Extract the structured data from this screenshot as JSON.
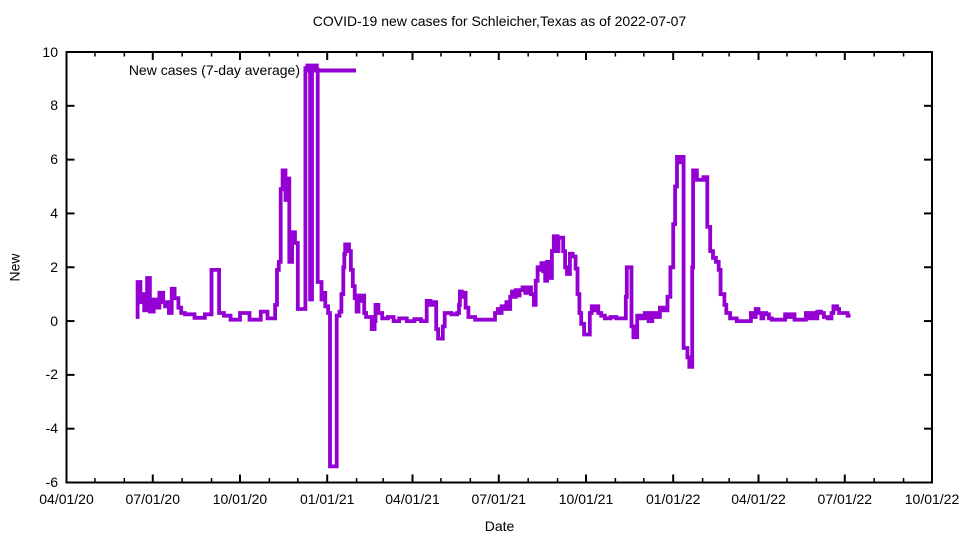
{
  "window": {
    "background": "#ffffff"
  },
  "chart_data": {
    "type": "line",
    "style": "steps",
    "title": "COVID-19 new cases for Schleicher,Texas as of 2022-07-07",
    "xlabel": "Date",
    "ylabel": "New",
    "grid": false,
    "x_range": [
      "2020-04-01",
      "2022-10-01"
    ],
    "ylim": [
      -6,
      10
    ],
    "y_ticks": [
      -6,
      -4,
      -2,
      0,
      2,
      4,
      6,
      8,
      10
    ],
    "x_ticks": [
      {
        "date": "2020-04-01",
        "label": "04/01/20"
      },
      {
        "date": "2020-07-01",
        "label": "07/01/20"
      },
      {
        "date": "2020-10-01",
        "label": "10/01/20"
      },
      {
        "date": "2021-01-01",
        "label": "01/01/21"
      },
      {
        "date": "2021-04-01",
        "label": "04/01/21"
      },
      {
        "date": "2021-07-01",
        "label": "07/01/21"
      },
      {
        "date": "2021-10-01",
        "label": "10/01/21"
      },
      {
        "date": "2022-01-01",
        "label": "01/01/22"
      },
      {
        "date": "2022-04-01",
        "label": "04/01/22"
      },
      {
        "date": "2022-07-01",
        "label": "07/01/22"
      },
      {
        "date": "2022-10-01",
        "label": "10/01/22"
      }
    ],
    "x_minor_tick": "monthly",
    "legend": {
      "label": "New cases (7-day average)",
      "position": "top-left-inside"
    },
    "colors": {
      "line": "#9400d3",
      "axis": "#000000",
      "text": "#000000"
    },
    "series": [
      {
        "name": "New cases (7-day average)",
        "points": [
          [
            "2020-06-13",
            0.15
          ],
          [
            "2020-06-15",
            1.45
          ],
          [
            "2020-06-18",
            0.7
          ],
          [
            "2020-06-20",
            1.0
          ],
          [
            "2020-06-22",
            0.4
          ],
          [
            "2020-06-25",
            1.6
          ],
          [
            "2020-06-28",
            0.35
          ],
          [
            "2020-07-02",
            0.8
          ],
          [
            "2020-07-05",
            0.5
          ],
          [
            "2020-07-08",
            1.05
          ],
          [
            "2020-07-12",
            0.7
          ],
          [
            "2020-07-14",
            0.55
          ],
          [
            "2020-07-16",
            0.7
          ],
          [
            "2020-07-18",
            0.3
          ],
          [
            "2020-07-21",
            1.2
          ],
          [
            "2020-07-24",
            0.85
          ],
          [
            "2020-07-28",
            0.5
          ],
          [
            "2020-07-31",
            0.3
          ],
          [
            "2020-08-04",
            0.25
          ],
          [
            "2020-08-14",
            0.12
          ],
          [
            "2020-08-25",
            0.25
          ],
          [
            "2020-09-01",
            1.9
          ],
          [
            "2020-09-09",
            0.3
          ],
          [
            "2020-09-14",
            0.2
          ],
          [
            "2020-09-21",
            0.05
          ],
          [
            "2020-10-01",
            0.3
          ],
          [
            "2020-10-11",
            0.05
          ],
          [
            "2020-10-23",
            0.35
          ],
          [
            "2020-10-30",
            0.1
          ],
          [
            "2020-11-07",
            0.6
          ],
          [
            "2020-11-09",
            1.9
          ],
          [
            "2020-11-11",
            2.2
          ],
          [
            "2020-11-13",
            4.9
          ],
          [
            "2020-11-15",
            5.6
          ],
          [
            "2020-11-18",
            4.5
          ],
          [
            "2020-11-19",
            5.3
          ],
          [
            "2020-11-22",
            2.2
          ],
          [
            "2020-11-25",
            3.3
          ],
          [
            "2020-11-28",
            2.9
          ],
          [
            "2020-12-01",
            0.45
          ],
          [
            "2020-12-09",
            9.4
          ],
          [
            "2020-12-11",
            9.5
          ],
          [
            "2020-12-14",
            0.8
          ],
          [
            "2020-12-16",
            9.4
          ],
          [
            "2020-12-18",
            9.5
          ],
          [
            "2020-12-21",
            9.35
          ],
          [
            "2020-12-22",
            1.45
          ],
          [
            "2020-12-26",
            0.8
          ],
          [
            "2020-12-28",
            1.05
          ],
          [
            "2020-12-30",
            0.55
          ],
          [
            "2021-01-02",
            0.3
          ],
          [
            "2021-01-04",
            -5.4
          ],
          [
            "2021-01-10",
            -5.4
          ],
          [
            "2021-01-11",
            0.2
          ],
          [
            "2021-01-14",
            0.35
          ],
          [
            "2021-01-16",
            1.0
          ],
          [
            "2021-01-18",
            2.0
          ],
          [
            "2021-01-19",
            2.5
          ],
          [
            "2021-01-20",
            2.85
          ],
          [
            "2021-01-24",
            2.6
          ],
          [
            "2021-01-26",
            1.9
          ],
          [
            "2021-01-28",
            1.3
          ],
          [
            "2021-01-30",
            0.85
          ],
          [
            "2021-02-01",
            0.35
          ],
          [
            "2021-02-03",
            0.95
          ],
          [
            "2021-02-05",
            0.75
          ],
          [
            "2021-02-07",
            0.95
          ],
          [
            "2021-02-09",
            0.3
          ],
          [
            "2021-02-11",
            0.15
          ],
          [
            "2021-02-17",
            -0.3
          ],
          [
            "2021-02-20",
            0.0
          ],
          [
            "2021-02-21",
            0.6
          ],
          [
            "2021-02-24",
            0.3
          ],
          [
            "2021-02-28",
            0.1
          ],
          [
            "2021-03-06",
            0.15
          ],
          [
            "2021-03-12",
            0.0
          ],
          [
            "2021-03-18",
            0.1
          ],
          [
            "2021-03-26",
            0.0
          ],
          [
            "2021-04-03",
            0.07
          ],
          [
            "2021-04-10",
            0.0
          ],
          [
            "2021-04-16",
            0.75
          ],
          [
            "2021-04-20",
            0.6
          ],
          [
            "2021-04-23",
            0.7
          ],
          [
            "2021-04-26",
            -0.3
          ],
          [
            "2021-04-28",
            -0.65
          ],
          [
            "2021-05-03",
            -0.2
          ],
          [
            "2021-05-05",
            0.3
          ],
          [
            "2021-05-12",
            0.25
          ],
          [
            "2021-05-18",
            0.3
          ],
          [
            "2021-05-20",
            0.6
          ],
          [
            "2021-05-21",
            1.1
          ],
          [
            "2021-05-23",
            0.9
          ],
          [
            "2021-05-25",
            1.05
          ],
          [
            "2021-05-27",
            0.5
          ],
          [
            "2021-05-30",
            0.15
          ],
          [
            "2021-06-06",
            0.05
          ],
          [
            "2021-06-27",
            0.3
          ],
          [
            "2021-06-30",
            0.45
          ],
          [
            "2021-07-02",
            0.3
          ],
          [
            "2021-07-04",
            0.55
          ],
          [
            "2021-07-06",
            0.45
          ],
          [
            "2021-07-09",
            0.7
          ],
          [
            "2021-07-11",
            0.45
          ],
          [
            "2021-07-13",
            0.9
          ],
          [
            "2021-07-15",
            1.1
          ],
          [
            "2021-07-17",
            0.9
          ],
          [
            "2021-07-19",
            1.15
          ],
          [
            "2021-07-21",
            0.95
          ],
          [
            "2021-07-23",
            1.15
          ],
          [
            "2021-07-26",
            1.25
          ],
          [
            "2021-07-29",
            1.05
          ],
          [
            "2021-08-01",
            1.25
          ],
          [
            "2021-08-04",
            1.0
          ],
          [
            "2021-08-07",
            0.6
          ],
          [
            "2021-08-09",
            1.5
          ],
          [
            "2021-08-11",
            2.0
          ],
          [
            "2021-08-13",
            1.9
          ],
          [
            "2021-08-15",
            2.15
          ],
          [
            "2021-08-17",
            1.85
          ],
          [
            "2021-08-19",
            1.5
          ],
          [
            "2021-08-21",
            2.2
          ],
          [
            "2021-08-24",
            1.6
          ],
          [
            "2021-08-26",
            2.6
          ],
          [
            "2021-08-28",
            3.15
          ],
          [
            "2021-09-01",
            2.6
          ],
          [
            "2021-09-02",
            3.1
          ],
          [
            "2021-09-07",
            2.6
          ],
          [
            "2021-09-09",
            2.0
          ],
          [
            "2021-09-11",
            1.75
          ],
          [
            "2021-09-14",
            2.5
          ],
          [
            "2021-09-17",
            2.4
          ],
          [
            "2021-09-20",
            1.95
          ],
          [
            "2021-09-22",
            1.0
          ],
          [
            "2021-09-24",
            0.3
          ],
          [
            "2021-09-26",
            -0.1
          ],
          [
            "2021-09-29",
            -0.5
          ],
          [
            "2021-10-05",
            0.3
          ],
          [
            "2021-10-07",
            0.55
          ],
          [
            "2021-10-09",
            0.4
          ],
          [
            "2021-10-11",
            0.55
          ],
          [
            "2021-10-14",
            0.3
          ],
          [
            "2021-10-17",
            0.2
          ],
          [
            "2021-10-21",
            0.1
          ],
          [
            "2021-10-27",
            0.15
          ],
          [
            "2021-11-02",
            0.1
          ],
          [
            "2021-11-12",
            0.9
          ],
          [
            "2021-11-13",
            2.0
          ],
          [
            "2021-11-18",
            -0.2
          ],
          [
            "2021-11-20",
            -0.6
          ],
          [
            "2021-11-24",
            0.2
          ],
          [
            "2021-11-28",
            0.1
          ],
          [
            "2021-12-02",
            0.3
          ],
          [
            "2021-12-06",
            0.0
          ],
          [
            "2021-12-10",
            0.3
          ],
          [
            "2021-12-14",
            0.15
          ],
          [
            "2021-12-18",
            0.5
          ],
          [
            "2021-12-22",
            0.4
          ],
          [
            "2021-12-26",
            0.9
          ],
          [
            "2021-12-29",
            2.0
          ],
          [
            "2022-01-01",
            3.6
          ],
          [
            "2022-01-03",
            5.0
          ],
          [
            "2022-01-05",
            6.1
          ],
          [
            "2022-01-08",
            5.9
          ],
          [
            "2022-01-09",
            6.1
          ],
          [
            "2022-01-12",
            -1.0
          ],
          [
            "2022-01-16",
            -1.35
          ],
          [
            "2022-01-18",
            -1.7
          ],
          [
            "2022-01-21",
            2.0
          ],
          [
            "2022-01-22",
            5.6
          ],
          [
            "2022-01-26",
            5.25
          ],
          [
            "2022-02-02",
            5.35
          ],
          [
            "2022-02-06",
            3.5
          ],
          [
            "2022-02-09",
            2.6
          ],
          [
            "2022-02-12",
            2.35
          ],
          [
            "2022-02-15",
            2.2
          ],
          [
            "2022-02-18",
            1.9
          ],
          [
            "2022-02-20",
            1.0
          ],
          [
            "2022-02-24",
            0.6
          ],
          [
            "2022-02-26",
            0.3
          ],
          [
            "2022-03-02",
            0.1
          ],
          [
            "2022-03-09",
            0.0
          ],
          [
            "2022-03-24",
            0.3
          ],
          [
            "2022-03-27",
            0.15
          ],
          [
            "2022-03-29",
            0.45
          ],
          [
            "2022-04-01",
            0.3
          ],
          [
            "2022-04-04",
            0.1
          ],
          [
            "2022-04-06",
            0.3
          ],
          [
            "2022-04-09",
            0.25
          ],
          [
            "2022-04-12",
            0.1
          ],
          [
            "2022-04-15",
            0.05
          ],
          [
            "2022-04-29",
            0.25
          ],
          [
            "2022-05-03",
            0.15
          ],
          [
            "2022-05-06",
            0.25
          ],
          [
            "2022-05-09",
            0.05
          ],
          [
            "2022-05-21",
            0.3
          ],
          [
            "2022-05-24",
            0.1
          ],
          [
            "2022-05-27",
            0.3
          ],
          [
            "2022-05-30",
            0.1
          ],
          [
            "2022-06-02",
            0.35
          ],
          [
            "2022-06-06",
            0.3
          ],
          [
            "2022-06-09",
            0.15
          ],
          [
            "2022-06-13",
            0.1
          ],
          [
            "2022-06-17",
            0.3
          ],
          [
            "2022-06-19",
            0.55
          ],
          [
            "2022-06-23",
            0.45
          ],
          [
            "2022-06-25",
            0.3
          ],
          [
            "2022-07-01",
            0.3
          ],
          [
            "2022-07-04",
            0.2
          ],
          [
            "2022-07-07",
            0.2
          ]
        ]
      }
    ]
  }
}
